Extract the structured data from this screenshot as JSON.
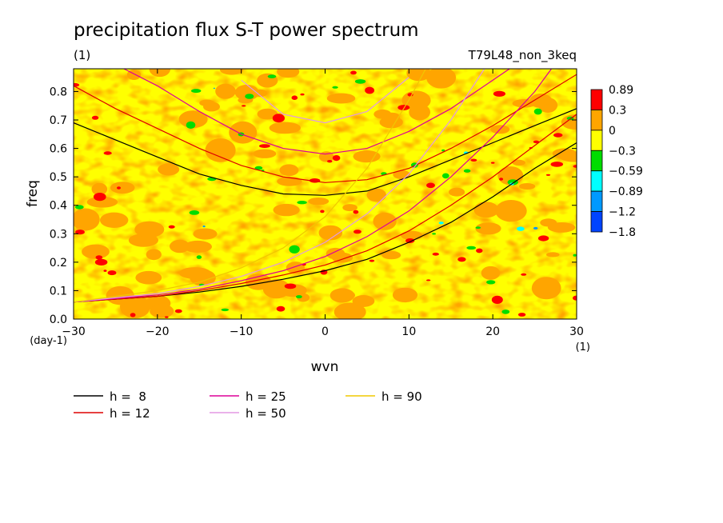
{
  "chart_data": {
    "type": "heatmap",
    "title": "precipitation flux S-T power spectrum",
    "subtitle_left": "(1)",
    "subtitle_right": "T79L48_non_3keq",
    "xlabel": "wvn",
    "ylabel": "freq",
    "x_unit": "(1)",
    "y_unit": "(day-1)",
    "xlim": [
      -30,
      30
    ],
    "ylim": [
      0,
      0.88
    ],
    "x_ticks": [
      -30,
      -20,
      -10,
      0,
      10,
      20,
      30
    ],
    "x_tick_labels": [
      "-30",
      "-20",
      "-10",
      "0",
      "10",
      "20",
      "30"
    ],
    "y_ticks": [
      0,
      0.1,
      0.2,
      0.3,
      0.4,
      0.5,
      0.6,
      0.7,
      0.8
    ],
    "y_tick_labels": [
      "0.0",
      "0.1",
      "0.2",
      "0.3",
      "0.4",
      "0.5",
      "0.6",
      "0.7",
      "0.8"
    ],
    "colorbar": {
      "labels": [
        "0.89",
        "0.3",
        "0",
        "-0.3",
        "-0.59",
        "-0.89",
        "-1.2",
        "-1.8"
      ],
      "colors": [
        "#ff0000",
        "#ffa500",
        "#ffff00",
        "#00dd00",
        "#00ffff",
        "#0099ff",
        "#0044ff"
      ]
    },
    "field": {
      "background_level": "0 to 0.3",
      "dominant_colors": [
        "#ffa500",
        "#ffff00"
      ],
      "note": "noisy field mostly between -0.3 and 0.3 with scattered red (>0.3) and green/cyan/blue (<-0.3) patches"
    },
    "dispersion_curves": [
      {
        "name": "h = 8",
        "label": "h =  8",
        "equivalent_depth": 8,
        "color": "#000000",
        "branches": [
          {
            "kind": "inertia-gravity",
            "x": [
              -30,
              -25,
              -20,
              -15,
              -10,
              -5,
              0,
              5,
              10,
              15,
              20,
              25,
              30
            ],
            "y": [
              0.69,
              0.63,
              0.57,
              0.51,
              0.47,
              0.44,
              0.435,
              0.45,
              0.5,
              0.56,
              0.62,
              0.68,
              0.74
            ]
          },
          {
            "kind": "kelvin",
            "x": [
              -30,
              -20,
              -15,
              -10,
              -5,
              0,
              5,
              10,
              15,
              20,
              25,
              30
            ],
            "y": [
              0.06,
              0.08,
              0.095,
              0.115,
              0.14,
              0.17,
              0.21,
              0.27,
              0.34,
              0.43,
              0.53,
              0.62
            ]
          }
        ]
      },
      {
        "name": "h = 12",
        "label": "h = 12",
        "equivalent_depth": 12,
        "color": "#dd0000",
        "branches": [
          {
            "kind": "inertia-gravity",
            "x": [
              -30,
              -25,
              -20,
              -15,
              -10,
              -5,
              0,
              5,
              10,
              15,
              20,
              25,
              30
            ],
            "y": [
              0.82,
              0.74,
              0.67,
              0.6,
              0.54,
              0.5,
              0.48,
              0.49,
              0.53,
              0.6,
              0.68,
              0.77,
              0.86
            ]
          },
          {
            "kind": "kelvin",
            "x": [
              -30,
              -20,
              -15,
              -10,
              -5,
              0,
              5,
              10,
              15,
              20,
              25,
              30
            ],
            "y": [
              0.06,
              0.08,
              0.1,
              0.125,
              0.155,
              0.19,
              0.24,
              0.31,
              0.4,
              0.5,
              0.61,
              0.72
            ]
          }
        ]
      },
      {
        "name": "h = 25",
        "label": "h = 25",
        "equivalent_depth": 25,
        "color": "#dd0099",
        "branches": [
          {
            "kind": "inertia-gravity",
            "x": [
              -24,
              -20,
              -15,
              -10,
              -5,
              0,
              5,
              10,
              15,
              20,
              22
            ],
            "y": [
              0.88,
              0.82,
              0.73,
              0.65,
              0.6,
              0.58,
              0.6,
              0.66,
              0.74,
              0.84,
              0.88
            ]
          },
          {
            "kind": "kelvin",
            "x": [
              -30,
              -20,
              -15,
              -10,
              -5,
              0,
              5,
              10,
              15,
              20,
              25,
              27
            ],
            "y": [
              0.06,
              0.085,
              0.105,
              0.135,
              0.17,
              0.22,
              0.29,
              0.38,
              0.5,
              0.64,
              0.8,
              0.88
            ]
          }
        ]
      },
      {
        "name": "h = 50",
        "label": "h = 50",
        "equivalent_depth": 50,
        "color": "#e399e3",
        "branches": [
          {
            "kind": "inertia-gravity",
            "x": [
              -10,
              -5,
              0,
              5,
              10
            ],
            "y": [
              0.84,
              0.72,
              0.69,
              0.73,
              0.85
            ]
          },
          {
            "kind": "kelvin",
            "x": [
              -30,
              -20,
              -15,
              -10,
              -5,
              0,
              5,
              10,
              15,
              19
            ],
            "y": [
              0.06,
              0.09,
              0.115,
              0.15,
              0.2,
              0.27,
              0.37,
              0.51,
              0.7,
              0.88
            ]
          }
        ]
      },
      {
        "name": "h = 90",
        "label": "h = 90",
        "equivalent_depth": 90,
        "color": "#f0c800",
        "branches": [
          {
            "kind": "kelvin",
            "x": [
              -30,
              -20,
              -15,
              -10,
              -5,
              0,
              5,
              10,
              12
            ],
            "y": [
              0.06,
              0.1,
              0.13,
              0.18,
              0.25,
              0.36,
              0.53,
              0.77,
              0.88
            ]
          }
        ]
      }
    ]
  }
}
